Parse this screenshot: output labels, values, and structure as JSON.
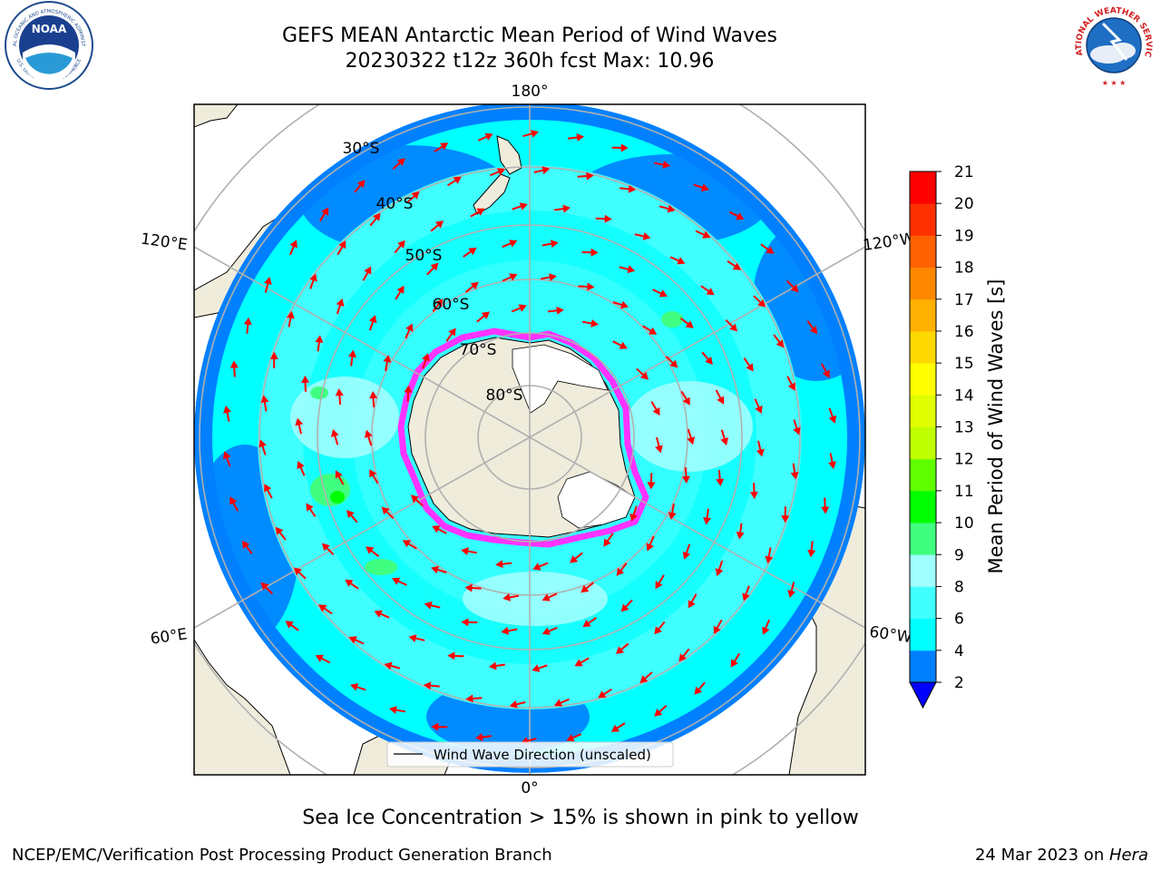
{
  "title_line1": "GEFS MEAN Antarctic Mean Period of Wind Waves",
  "title_line2": "20230322 t12z 360h fcst   Max: 10.96",
  "noaa_logo": {
    "center_text": "NOAA",
    "ring_text_top": "NATIONAL OCEANIC AND ATMOSPHERIC ADMINISTRATION",
    "ring_text_bottom": "U.S. DEPARTMENT OF COMMERCE"
  },
  "nws_logo": {
    "ring_text": "NATIONAL WEATHER SERVICE"
  },
  "map": {
    "longitude_labels": {
      "top": "180°",
      "bottom": "0°",
      "upper_left": "120°E",
      "upper_right": "120°W",
      "lower_left": "60°E",
      "lower_right": "60°W"
    },
    "latitude_labels": [
      "30°S",
      "40°S",
      "50°S",
      "60°S",
      "70°S",
      "80°S"
    ],
    "legend": "Wind Wave Direction (unscaled)",
    "colors": {
      "land": "#efecdc",
      "ice_edge": "#ff33ff",
      "arrow": "#ff0000",
      "grid": "#b0b0b0"
    }
  },
  "colorbar": {
    "label": "Mean Period of Wind Waves [s]",
    "ticks": [
      "2",
      "4",
      "6",
      "8",
      "9",
      "10",
      "11",
      "12",
      "13",
      "14",
      "15",
      "16",
      "17",
      "18",
      "19",
      "20",
      "21"
    ],
    "colors": [
      "#0000ff",
      "#0080ff",
      "#00ffff",
      "#40ffff",
      "#a0ffff",
      "#40ff80",
      "#00ff00",
      "#60ff00",
      "#c0ff00",
      "#e0ff00",
      "#ffff00",
      "#ffd800",
      "#ffb000",
      "#ff8800",
      "#ff6000",
      "#ff3000",
      "#ff0000"
    ]
  },
  "caption": "Sea Ice Concentration > 15% is shown in pink to yellow",
  "footer_left": "NCEP/EMC/Verification Post Processing Product Generation Branch",
  "footer_right_date": "24 Mar 2023 on ",
  "footer_right_host": "Hera"
}
